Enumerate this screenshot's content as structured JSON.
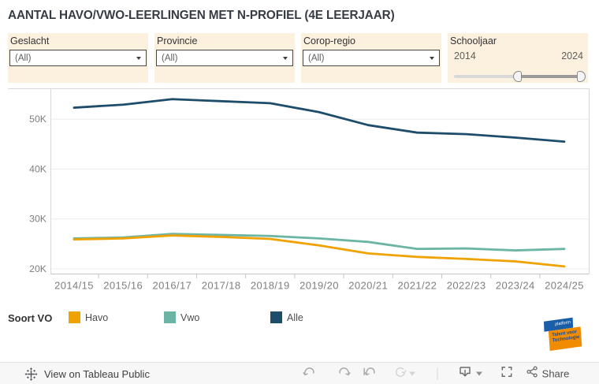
{
  "title": "AANTAL HAVO/VWO-LEERLINGEN MET N-PROFIEL (4E LEERJAAR)",
  "filters": [
    {
      "label": "Geslacht",
      "value": "(All)",
      "type": "dropdown"
    },
    {
      "label": "Provincie",
      "value": "(All)",
      "type": "dropdown"
    },
    {
      "label": "Corop-regio",
      "value": "(All)",
      "type": "dropdown"
    },
    {
      "label": "Schooljaar",
      "type": "range-slider",
      "min": "2014",
      "max": "2024",
      "handles": [
        0.5,
        1.0
      ]
    }
  ],
  "chart_data": {
    "type": "line",
    "categories": [
      "2014/15",
      "2015/16",
      "2016/17",
      "2017/18",
      "2018/19",
      "2019/20",
      "2020/21",
      "2021/22",
      "2022/23",
      "2023/24",
      "2024/25"
    ],
    "series": [
      {
        "name": "Havo",
        "color": "#f0a202",
        "values": [
          25900,
          26100,
          26700,
          26400,
          26000,
          24700,
          23100,
          22400,
          22000,
          21500,
          20500
        ]
      },
      {
        "name": "Vwo",
        "color": "#6cb5a5",
        "values": [
          26100,
          26300,
          27000,
          26800,
          26600,
          26100,
          25400,
          24000,
          24100,
          23700,
          24000
        ]
      },
      {
        "name": "Alle",
        "color": "#1e4d6b",
        "values": [
          52300,
          52900,
          54000,
          53600,
          53200,
          51400,
          48800,
          47300,
          47000,
          46300,
          45500
        ]
      }
    ],
    "yticks": [
      {
        "value": 20000,
        "label": "20K"
      },
      {
        "value": 30000,
        "label": "30K"
      },
      {
        "value": 40000,
        "label": "40K"
      },
      {
        "value": 50000,
        "label": "50K"
      }
    ],
    "ylim": [
      18900,
      56200
    ],
    "legend_title": "Soort VO",
    "grid": true,
    "legend_position": "bottom"
  },
  "logo": {
    "line1": "platform",
    "line2": "Talent voor",
    "line3": "Technologie"
  },
  "toolbar": {
    "view_text": "View on Tableau Public",
    "share_label": "Share",
    "icons": [
      "undo",
      "redo",
      "revert",
      "refresh",
      "download",
      "fullscreen",
      "share"
    ]
  }
}
